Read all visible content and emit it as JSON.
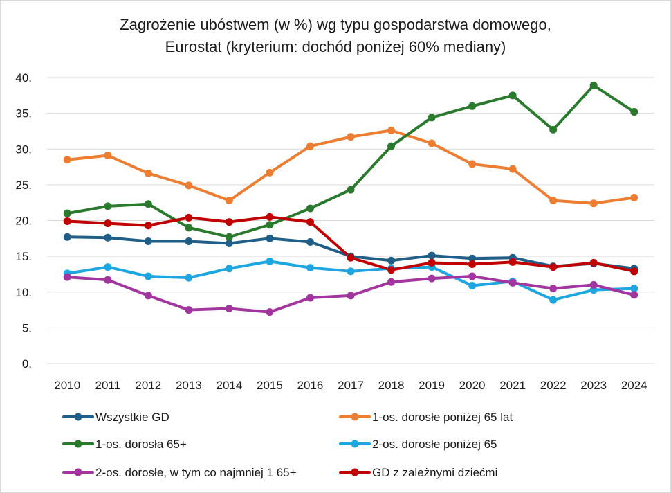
{
  "chart_data": {
    "type": "line",
    "title": "Zagrożenie ubóstwem (w %) wg typu gospodarstwa domowego,",
    "subtitle": "Eurostat (kryterium: dochód poniżej 60% mediany)",
    "xlabel": "",
    "ylabel": "",
    "ylim": [
      0,
      40
    ],
    "y_ticks": [
      0,
      5,
      10,
      15,
      20,
      25,
      30,
      35,
      40
    ],
    "y_tick_labels": [
      "0.",
      "5.",
      "10.",
      "15.",
      "20.",
      "25.",
      "30.",
      "35.",
      "40."
    ],
    "grid": true,
    "legend_position": "bottom",
    "x": [
      "2010",
      "2011",
      "2012",
      "2013",
      "2014",
      "2015",
      "2016",
      "2017",
      "2018",
      "2019",
      "2020",
      "2021",
      "2022",
      "2023",
      "2024"
    ],
    "series": [
      {
        "name": "Wszystkie GD",
        "color": "#1f5f87",
        "values": [
          17.7,
          17.6,
          17.1,
          17.1,
          16.8,
          17.5,
          17.0,
          15.0,
          14.4,
          15.1,
          14.7,
          14.8,
          13.6,
          14.0,
          13.3
        ]
      },
      {
        "name": "1-os. dorosłe poniżej 65 lat",
        "color": "#ed7d31",
        "values": [
          28.5,
          29.1,
          26.6,
          24.9,
          22.8,
          26.7,
          30.4,
          31.7,
          32.6,
          30.8,
          27.9,
          27.2,
          22.8,
          22.4,
          23.2
        ]
      },
      {
        "name": "1-os. dorosła 65+",
        "color": "#2a7a2e",
        "values": [
          21.0,
          22.0,
          22.3,
          19.0,
          17.7,
          19.4,
          21.7,
          24.3,
          30.4,
          34.4,
          36.0,
          37.5,
          32.7,
          38.9,
          35.2
        ]
      },
      {
        "name": "2-os. dorosłe poniżej 65",
        "color": "#1ea6e0",
        "values": [
          12.6,
          13.5,
          12.2,
          12.0,
          13.3,
          14.3,
          13.4,
          12.9,
          13.3,
          13.5,
          10.9,
          11.5,
          8.9,
          10.3,
          10.5
        ]
      },
      {
        "name": "2-os. dorosłe, w tym co najmniej 1 65+",
        "color": "#a2359e",
        "values": [
          12.1,
          11.7,
          9.5,
          7.5,
          7.7,
          7.2,
          9.2,
          9.5,
          11.4,
          11.9,
          12.2,
          11.3,
          10.5,
          11.0,
          9.6
        ]
      },
      {
        "name": "GD z zależnymi dziećmi",
        "color": "#c00000",
        "values": [
          19.9,
          19.6,
          19.3,
          20.4,
          19.8,
          20.5,
          19.8,
          14.8,
          13.1,
          14.1,
          13.9,
          14.2,
          13.5,
          14.1,
          12.9
        ]
      }
    ]
  }
}
